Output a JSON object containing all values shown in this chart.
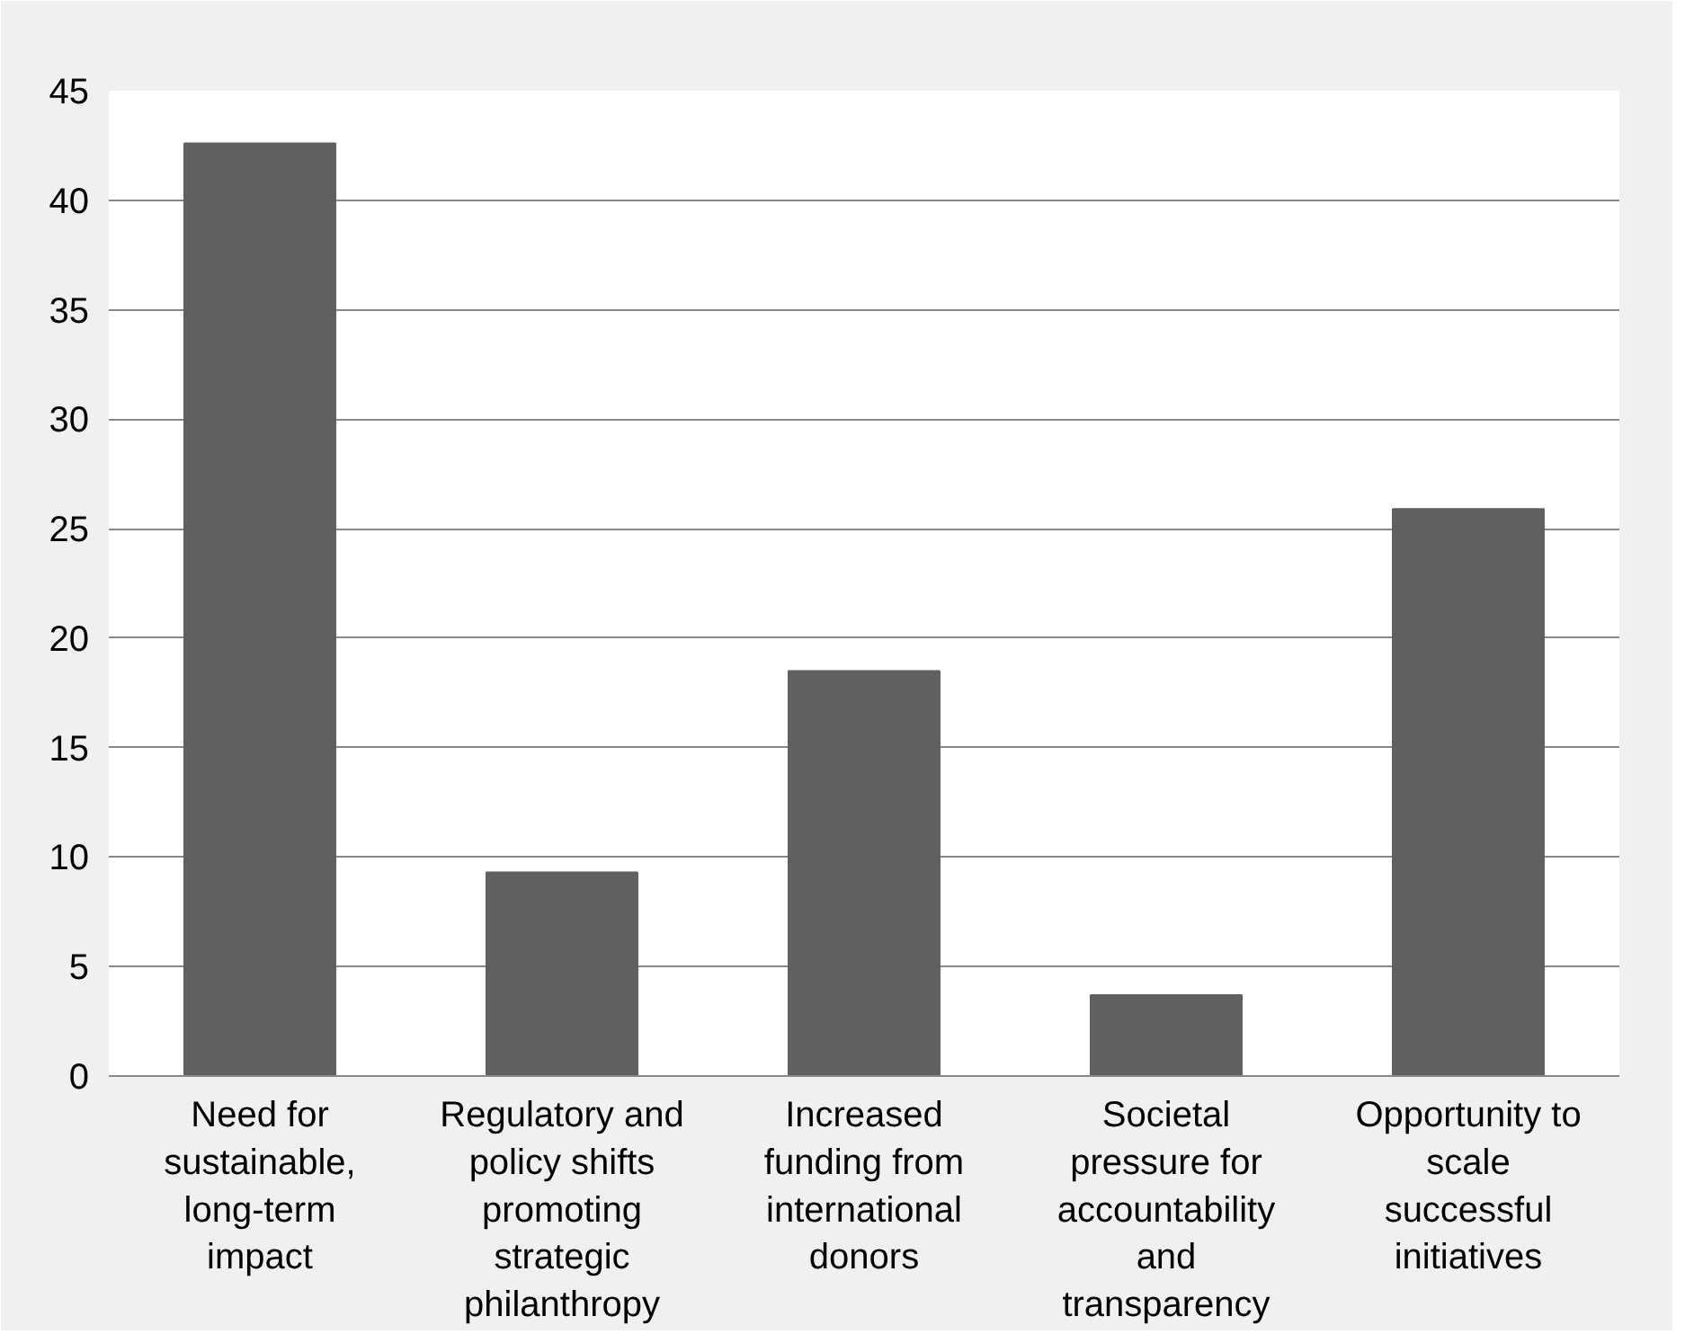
{
  "chart_data": {
    "type": "bar",
    "categories": [
      "Need for sustainable, long-term impact",
      "Regulatory and policy shifts promoting strategic philanthropy",
      "Increased funding from international donors",
      "Societal pressure for accountability and transparency",
      "Opportunity to scale successful initiatives"
    ],
    "values": [
      42.6,
      9.3,
      18.5,
      3.7,
      25.9
    ],
    "color": "#606060",
    "ylim": [
      0,
      45
    ],
    "yticks": [
      0,
      5,
      10,
      15,
      20,
      25,
      30,
      35,
      40,
      45
    ],
    "grid": "y"
  }
}
